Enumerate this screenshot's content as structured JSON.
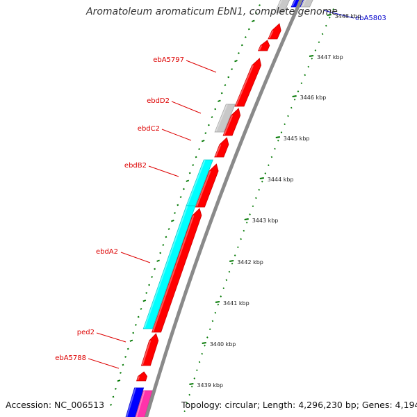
{
  "title": "Aromatoleum aromaticum EbN1, complete genome",
  "footer": {
    "accession": "Accession: NC_006513",
    "summary": "Topology: circular; Length: 4,296,230 bp; Genes: 4,194"
  },
  "colors": {
    "gene_red": "#ff0000",
    "gene_gray": "#c8c8c8",
    "gene_cyan": "#00ffff",
    "gene_blue": "#0000ff",
    "gene_magenta": "#ff33aa",
    "backbone": "#8a8a8a",
    "tick_dots": "#007700",
    "label_red": "#dd0000",
    "label_blue": "#0000cc"
  },
  "ruler_ticks": [
    "3439 kbp",
    "3440 kbp",
    "3441 kbp",
    "3442 kbp",
    "3443 kbp",
    "3444 kbp",
    "3445 kbp",
    "3446 kbp",
    "3447 kbp",
    "3448 kbp"
  ],
  "gene_labels": [
    {
      "text": "ebA5803",
      "color": "blue"
    },
    {
      "text": "ebA5797",
      "color": "red"
    },
    {
      "text": "ebdD2",
      "color": "red"
    },
    {
      "text": "ebdC2",
      "color": "red"
    },
    {
      "text": "ebdB2",
      "color": "red"
    },
    {
      "text": "ebdA2",
      "color": "red"
    },
    {
      "text": "ped2",
      "color": "red"
    },
    {
      "text": "ebA5788",
      "color": "red"
    }
  ]
}
